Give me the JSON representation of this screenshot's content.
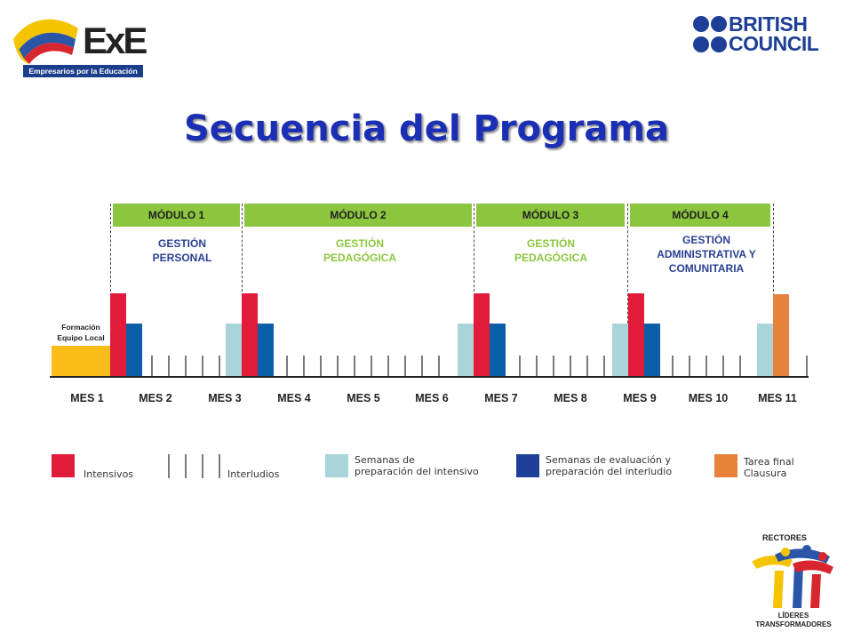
{
  "title": "Secuencia del Programa",
  "logos": {
    "exe_letters": "ExE",
    "exe_tagline": "Empresarios por la Educación",
    "bc_line1": "BRITISH",
    "bc_line2": "COUNCIL",
    "rectores_top": "RECTORES",
    "rectores_bottom1": "LÍDERES",
    "rectores_bottom2": "TRANSFORMADORES"
  },
  "colors": {
    "module_green": "#8cc63f",
    "intensive_red": "#e31b3a",
    "eval_blue": "#0b5ea8",
    "prep_lightblue": "#a9d4da",
    "final_orange": "#e8823a",
    "local_yellow": "#f9bc18"
  },
  "modules": [
    {
      "label": "MÓDULO 1",
      "sub": "GESTIÓN PERSONAL",
      "sub_lines": [
        "GESTIÓN",
        "PERSONAL"
      ],
      "sub_color": "#2a3f90"
    },
    {
      "label": "MÓDULO 2",
      "sub": "GESTIÓN PEDAGÓGICA",
      "sub_lines": [
        "GESTIÓN",
        "PEDAGÓGICA"
      ],
      "sub_color": "#8cc63f"
    },
    {
      "label": "MÓDULO 3",
      "sub": "GESTIÓN PEDAGÓGICA",
      "sub_lines": [
        "GESTIÓN",
        "PEDAGÓGICA"
      ],
      "sub_color": "#8cc63f"
    },
    {
      "label": "MÓDULO 4",
      "sub": "GESTIÓN ADMINISTRATIVA Y COMUNITARIA",
      "sub_lines": [
        "GESTIÓN",
        "ADMINISTRATIVA Y",
        "COMUNITARIA"
      ],
      "sub_color": "#2a3f90"
    }
  ],
  "formacion_label": [
    "Formación",
    "Equipo Local"
  ],
  "months": [
    "MES 1",
    "MES 2",
    "MES 3",
    "MES 4",
    "MES 5",
    "MES 6",
    "MES 7",
    "MES 8",
    "MES 9",
    "MES 10",
    "MES 11"
  ],
  "legend": {
    "intensivos": "Intensivos",
    "interludios": "Interludios",
    "preparacion": [
      "Semanas de",
      "preparación del intensivo"
    ],
    "evaluacion": [
      "Semanas de evaluación y",
      "preparación del interludio"
    ],
    "final": [
      "Tarea final",
      "Clausura"
    ]
  }
}
